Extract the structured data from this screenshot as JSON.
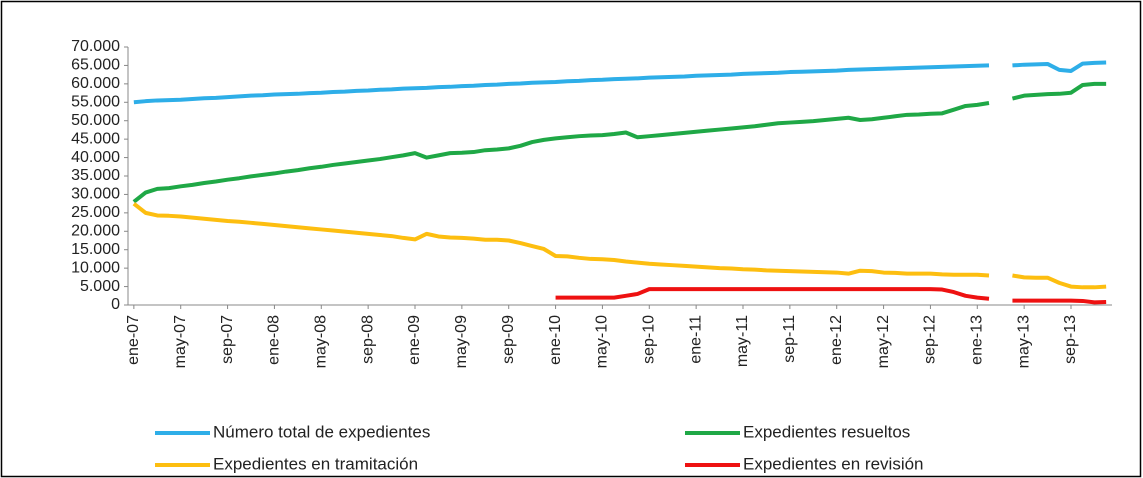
{
  "chart_data": {
    "type": "line",
    "categories": [
      "ene-07",
      null,
      null,
      null,
      "may-07",
      null,
      null,
      null,
      "sep-07",
      null,
      null,
      null,
      "ene-08",
      null,
      null,
      null,
      "may-08",
      null,
      null,
      null,
      "sep-08",
      null,
      null,
      null,
      "ene-09",
      null,
      null,
      null,
      "may-09",
      null,
      null,
      null,
      "sep-09",
      null,
      null,
      null,
      "ene-10",
      null,
      null,
      null,
      "may-10",
      null,
      null,
      null,
      "sep-10",
      null,
      null,
      null,
      "ene-11",
      null,
      null,
      null,
      "may-11",
      null,
      null,
      null,
      "sep-11",
      null,
      null,
      null,
      "ene-12",
      null,
      null,
      null,
      "may-12",
      null,
      null,
      null,
      "sep-12",
      null,
      null,
      null,
      "ene-13",
      null,
      null,
      null,
      "may-13",
      null,
      null,
      null,
      "sep-13",
      null,
      null,
      null
    ],
    "series": [
      {
        "name": "Número total de expedientes",
        "color": "#2eaee8",
        "values": [
          55000,
          55300,
          55500,
          55600,
          55700,
          55900,
          56100,
          56200,
          56400,
          56600,
          56800,
          56900,
          57100,
          57200,
          57300,
          57500,
          57600,
          57800,
          57900,
          58100,
          58200,
          58400,
          58500,
          58700,
          58800,
          58900,
          59100,
          59200,
          59400,
          59500,
          59700,
          59800,
          60000,
          60100,
          60300,
          60400,
          60500,
          60700,
          60800,
          61000,
          61100,
          61300,
          61400,
          61500,
          61700,
          61800,
          61900,
          62000,
          62200,
          62300,
          62400,
          62500,
          62700,
          62800,
          62900,
          63000,
          63200,
          63300,
          63400,
          63500,
          63600,
          63800,
          63900,
          64000,
          64100,
          64200,
          64300,
          64400,
          64500,
          64600,
          64700,
          64800,
          64900,
          65000,
          null,
          65000,
          65200,
          65300,
          65400,
          63800,
          63500,
          65500,
          65700,
          65800
        ]
      },
      {
        "name": "Expedientes resueltos",
        "color": "#1fa846",
        "values": [
          28000,
          30500,
          31500,
          31700,
          32200,
          32600,
          33100,
          33500,
          34000,
          34400,
          34900,
          35300,
          35700,
          36200,
          36600,
          37100,
          37500,
          38000,
          38400,
          38800,
          39200,
          39600,
          40100,
          40600,
          41200,
          40000,
          40600,
          41200,
          41300,
          41500,
          42000,
          42200,
          42500,
          43200,
          44200,
          44800,
          45200,
          45500,
          45800,
          46000,
          46100,
          46400,
          46800,
          45500,
          45800,
          46100,
          46400,
          46700,
          47000,
          47300,
          47600,
          47900,
          48200,
          48500,
          48900,
          49300,
          49500,
          49700,
          49900,
          50200,
          50500,
          50800,
          50200,
          50400,
          50800,
          51200,
          51600,
          51700,
          51900,
          52000,
          53000,
          54000,
          54300,
          54800,
          null,
          56000,
          56800,
          57000,
          57200,
          57300,
          57600,
          59700,
          60000,
          60000
        ]
      },
      {
        "name": "Expedientes en tramitación",
        "color": "#fdbe10",
        "values": [
          27500,
          25000,
          24300,
          24200,
          24000,
          23700,
          23400,
          23100,
          22800,
          22600,
          22300,
          22000,
          21700,
          21400,
          21100,
          20800,
          20500,
          20200,
          19900,
          19600,
          19300,
          19000,
          18700,
          18200,
          17800,
          19300,
          18600,
          18300,
          18200,
          18000,
          17700,
          17700,
          17500,
          16800,
          16000,
          15200,
          13300,
          13200,
          12800,
          12500,
          12400,
          12200,
          11800,
          11500,
          11200,
          11000,
          10800,
          10600,
          10400,
          10200,
          10000,
          9900,
          9700,
          9600,
          9400,
          9300,
          9200,
          9100,
          9000,
          8900,
          8800,
          8500,
          9300,
          9200,
          8800,
          8700,
          8500,
          8500,
          8500,
          8300,
          8200,
          8200,
          8200,
          8000,
          null,
          8000,
          7500,
          7400,
          7400,
          6000,
          5000,
          4800,
          4800,
          5000
        ]
      },
      {
        "name": "Expedientes en revisión",
        "color": "#ee1111",
        "values": [
          null,
          null,
          null,
          null,
          null,
          null,
          null,
          null,
          null,
          null,
          null,
          null,
          null,
          null,
          null,
          null,
          null,
          null,
          null,
          null,
          null,
          null,
          null,
          null,
          null,
          null,
          null,
          null,
          null,
          null,
          null,
          null,
          null,
          null,
          null,
          null,
          2000,
          2000,
          2000,
          2000,
          2000,
          2000,
          2500,
          3000,
          4300,
          4300,
          4300,
          4300,
          4300,
          4300,
          4300,
          4300,
          4300,
          4300,
          4300,
          4300,
          4300,
          4300,
          4300,
          4300,
          4300,
          4300,
          4300,
          4300,
          4300,
          4300,
          4300,
          4300,
          4300,
          4200,
          3500,
          2500,
          2000,
          1700,
          null,
          1200,
          1200,
          1200,
          1200,
          1200,
          1200,
          1100,
          700,
          800
        ]
      }
    ],
    "ylim": [
      0,
      70000
    ],
    "yticks": [
      0,
      {
        "value": 5000,
        "label": "5.000"
      },
      {
        "value": 10000,
        "label": "10.000"
      },
      {
        "value": 15000,
        "label": "15.000"
      },
      {
        "value": 20000,
        "label": "20.000"
      },
      {
        "value": 25000,
        "label": "25.000"
      },
      {
        "value": 30000,
        "label": "30.000"
      },
      {
        "value": 35000,
        "label": "35.000"
      },
      {
        "value": 40000,
        "label": "40.000"
      },
      {
        "value": 45000,
        "label": "45.000"
      },
      {
        "value": 50000,
        "label": "50.000"
      },
      {
        "value": 55000,
        "label": "55.000"
      },
      {
        "value": 60000,
        "label": "60.000"
      },
      {
        "value": 65000,
        "label": "65.000"
      },
      {
        "value": 70000,
        "label": "70.000"
      }
    ],
    "grid": false,
    "legend": "bottom"
  }
}
